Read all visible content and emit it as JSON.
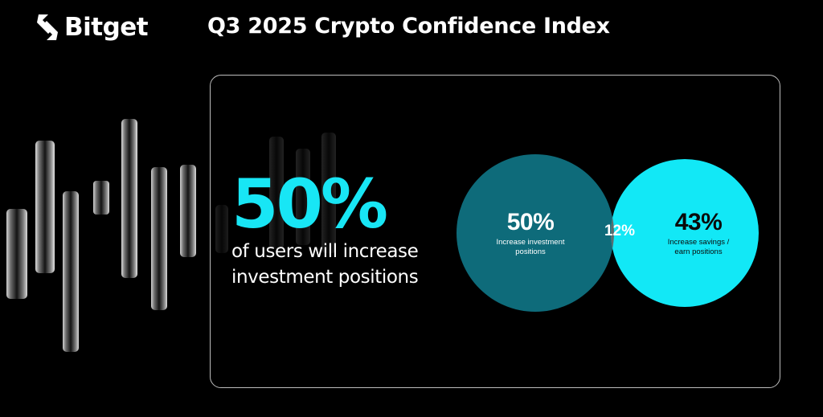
{
  "brand": {
    "name": "Bitget"
  },
  "header": {
    "title": "Q3 2025 Crypto Confidence Index"
  },
  "hero": {
    "stat": "50%",
    "caption_line1": "of users will increase",
    "caption_line2": "investment positions"
  },
  "venn": {
    "left": {
      "value": "50%",
      "label_line1": "Increase investment",
      "label_line2": "positions"
    },
    "overlap": {
      "value": "12%"
    },
    "right": {
      "value": "43%",
      "label_line1": "Increase savings /",
      "label_line2": "earn positions"
    }
  },
  "colors": {
    "background": "#000000",
    "accent_cyan": "#18e6f5",
    "venn_left": "#0e6b7a",
    "venn_right": "#12e8f6",
    "venn_overlap": "#5a6c6e",
    "panel_border": "#bdbdbd"
  },
  "icons": {
    "logo": "bitget-logo-icon"
  }
}
